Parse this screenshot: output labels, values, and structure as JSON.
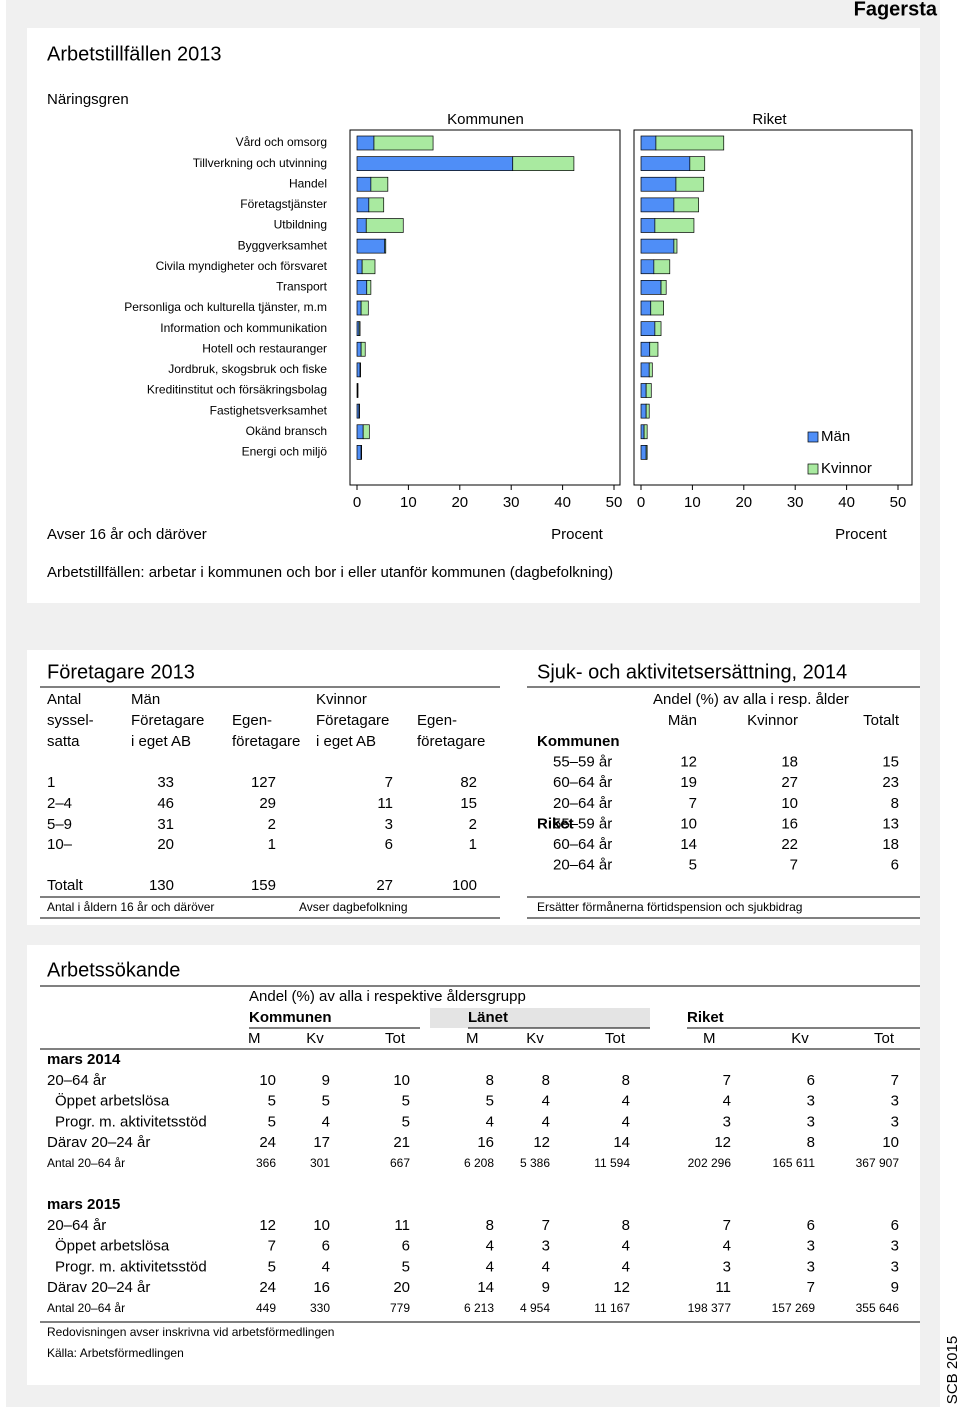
{
  "header": {
    "title": "Fagersta"
  },
  "section1": {
    "title": "Arbetstillfällen 2013",
    "scope": "Avser 16 år och däröver",
    "note": "Arbetstillfällen: arbetar i kommunen och bor i eller utanför kommunen (dagbefolkning)"
  },
  "chart_data": [
    {
      "type": "bar",
      "orientation": "horizontal",
      "stacked": true,
      "title": "Kommunen",
      "ylabel": "Näringsgren",
      "xlabel": "Procent",
      "categories": [
        "Vård och omsorg",
        "Tillverkning och utvinning",
        "Handel",
        "Företagstjänster",
        "Utbildning",
        "Byggverksamhet",
        "Civila myndigheter och försvaret",
        "Transport",
        "Personliga och kulturella tjänster, m.m",
        "Information och kommunikation",
        "Hotell och restauranger",
        "Jordbruk, skogsbruk och fiske",
        "Kreditinstitut och försäkringsbolag",
        "Fastighetsverksamhet",
        "Okänd bransch",
        "Energi och miljö"
      ],
      "series": [
        {
          "color": "#4f8ef7",
          "values": [
            3.3,
            30.3,
            2.7,
            2.3,
            1.8,
            5.4,
            1.0,
            1.9,
            0.8,
            0.4,
            0.8,
            0.6,
            0.1,
            0.4,
            1.2,
            0.8
          ]
        },
        {
          "color": "#a9eaa0",
          "values": [
            11.5,
            11.9,
            3.3,
            2.9,
            7.2,
            0.2,
            2.5,
            0.8,
            1.4,
            0.2,
            0.8,
            0.1,
            0.1,
            0.1,
            1.2,
            0.1
          ]
        }
      ],
      "xlim": [
        0,
        50
      ],
      "xticks": [
        0,
        10,
        20,
        30,
        40,
        50
      ]
    },
    {
      "type": "bar",
      "orientation": "horizontal",
      "stacked": true,
      "title": "Riket",
      "xlabel": "Procent",
      "legend": "right",
      "series": [
        {
          "name": "Män",
          "color": "#4f8ef7",
          "values": [
            2.9,
            9.5,
            6.8,
            6.4,
            2.7,
            6.4,
            2.5,
            3.9,
            1.9,
            2.7,
            1.7,
            1.6,
            1.0,
            1.0,
            0.6,
            1.0
          ]
        },
        {
          "name": "Kvinnor",
          "color": "#a9eaa0",
          "values": [
            13.2,
            2.9,
            5.4,
            4.8,
            7.6,
            0.6,
            3.1,
            1.0,
            2.5,
            1.2,
            1.6,
            0.6,
            1.0,
            0.6,
            0.6,
            0.2
          ]
        }
      ],
      "xlim": [
        0,
        50
      ],
      "xticks": [
        0,
        10,
        20,
        30,
        40,
        50
      ]
    }
  ],
  "foretagare": {
    "title": "Företagare 2013",
    "antal": [
      "Antal",
      "syssel-",
      "satta"
    ],
    "man": "Män",
    "kvinnor": "Kvinnor",
    "sub": [
      [
        "Företagare",
        "i eget AB"
      ],
      [
        "Egen-",
        "företagare"
      ]
    ],
    "rows": [
      [
        "1",
        "33",
        "127",
        "7",
        "82"
      ],
      [
        "2–4",
        "46",
        "29",
        "11",
        "15"
      ],
      [
        "5–9",
        "31",
        "2",
        "3",
        "2"
      ],
      [
        "10–",
        "20",
        "1",
        "6",
        "1"
      ],
      [
        "Totalt",
        "130",
        "159",
        "27",
        "100"
      ]
    ],
    "notes": [
      "Antal i åldern 16 år och däröver",
      "Avser dagbefolkning"
    ]
  },
  "sjuk": {
    "title": "Sjuk- och aktivitetsersättning, 2014",
    "header": "Andel (%) av alla i resp. ålder",
    "columns": [
      "Män",
      "Kvinnor",
      "Totalt"
    ],
    "groups": [
      {
        "label": "Kommunen",
        "rows": [
          [
            "55–59 år",
            "12",
            "18",
            "15"
          ],
          [
            "60–64 år",
            "19",
            "27",
            "23"
          ],
          [
            "20–64 år",
            "7",
            "10",
            "8"
          ]
        ]
      },
      {
        "label": "Riket",
        "rows": [
          [
            "55–59 år",
            "10",
            "16",
            "13"
          ],
          [
            "60–64 år",
            "14",
            "22",
            "18"
          ],
          [
            "20–64 år",
            "5",
            "7",
            "6"
          ]
        ]
      }
    ],
    "note": "Ersätter förmånerna förtidspension och sjukbidrag"
  },
  "arbetssokande": {
    "title": "Arbetssökande",
    "subtitle": "Andel (%) av alla i respektive åldersgrupp",
    "groups": [
      "Kommunen",
      "Länet",
      "Riket"
    ],
    "columns": [
      "M",
      "Kv",
      "Tot"
    ],
    "blocks": [
      {
        "label": "mars 2014",
        "rows": [
          [
            "20–64 år",
            "10",
            "9",
            "10",
            "8",
            "8",
            "8",
            "7",
            "6",
            "7"
          ],
          [
            "Öppet arbetslösa",
            "5",
            "5",
            "5",
            "5",
            "4",
            "4",
            "4",
            "3",
            "3"
          ],
          [
            "Progr. m. aktivitetsstöd",
            "5",
            "4",
            "5",
            "4",
            "4",
            "4",
            "3",
            "3",
            "3"
          ],
          [
            "Därav 20–24 år",
            "24",
            "17",
            "21",
            "16",
            "12",
            "14",
            "12",
            "8",
            "10"
          ],
          [
            "Antal 20–64 år",
            "366",
            "301",
            "667",
            "6 208",
            "5 386",
            "11 594",
            "202 296",
            "165 611",
            "367 907"
          ]
        ]
      },
      {
        "label": "mars 2015",
        "rows": [
          [
            "20–64 år",
            "12",
            "10",
            "11",
            "8",
            "7",
            "8",
            "7",
            "6",
            "6"
          ],
          [
            "Öppet arbetslösa",
            "7",
            "6",
            "6",
            "4",
            "3",
            "4",
            "4",
            "3",
            "3"
          ],
          [
            "Progr. m. aktivitetsstöd",
            "5",
            "4",
            "5",
            "4",
            "4",
            "4",
            "3",
            "3",
            "3"
          ],
          [
            "Därav 20–24 år",
            "24",
            "16",
            "20",
            "14",
            "9",
            "12",
            "11",
            "7",
            "9"
          ],
          [
            "Antal 20–64 år",
            "449",
            "330",
            "779",
            "6 213",
            "4 954",
            "11 167",
            "198 377",
            "157 269",
            "355 646"
          ]
        ]
      }
    ],
    "note": "Redovisningen avser inskrivna vid arbetsförmedlingen",
    "source": "Källa: Arbetsförmedlingen"
  },
  "footer": {
    "publisher": "SCB 2015"
  }
}
